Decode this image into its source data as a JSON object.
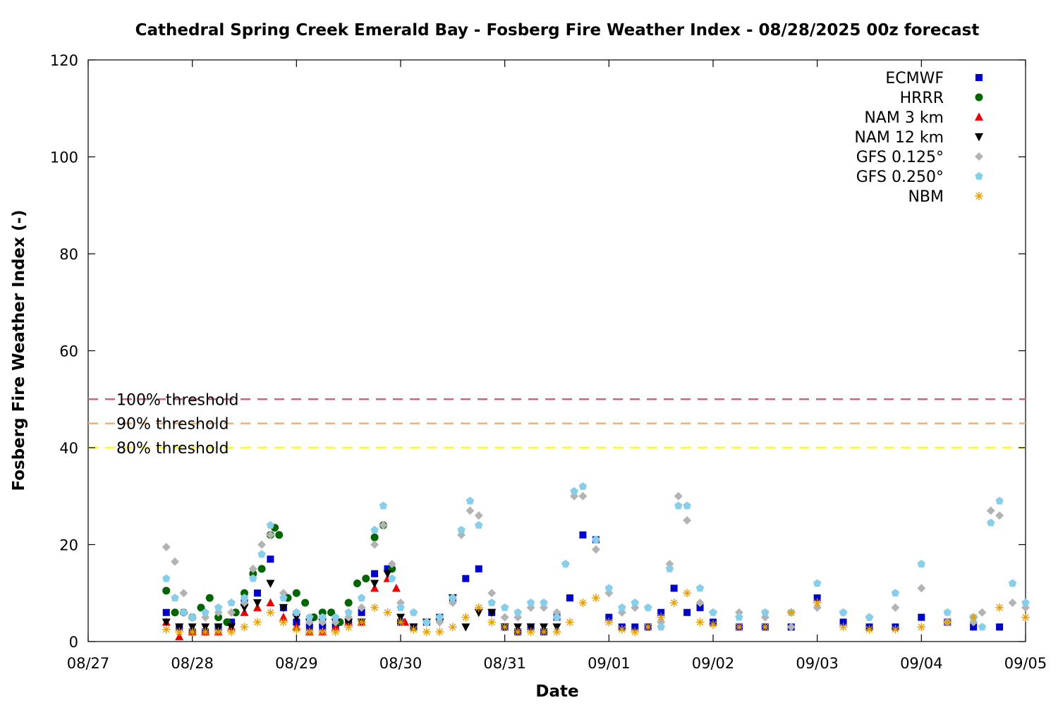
{
  "chart_data": {
    "type": "scatter",
    "title": "Cathedral Spring Creek Emerald Bay - Fosberg Fire Weather Index - 08/28/2025 00z forecast",
    "xlabel": "Date",
    "ylabel": "Fosberg Fire Weather Index (-)",
    "xlim": [
      "08/27",
      "09/05"
    ],
    "ylim": [
      0,
      120
    ],
    "x_tick_labels": [
      "08/27",
      "08/28",
      "08/29",
      "08/30",
      "08/31",
      "09/01",
      "09/02",
      "09/03",
      "09/04",
      "09/05"
    ],
    "y_ticks": [
      0,
      20,
      40,
      60,
      80,
      100,
      120
    ],
    "grid": false,
    "legend_position": "top-right",
    "thresholds": [
      {
        "label": "100% threshold",
        "value": 50,
        "color": "#d95f7f"
      },
      {
        "label": "90% threshold",
        "value": 45,
        "color": "#f0b070"
      },
      {
        "label": "80% threshold",
        "value": 40,
        "color": "#ffff00"
      }
    ],
    "series": [
      {
        "name": "ECMWF",
        "marker": "square",
        "color": "#0000cc",
        "x": [
          "08/27 18:00",
          "08/27 21:00",
          "08/28 00:00",
          "08/28 03:00",
          "08/28 06:00",
          "08/28 09:00",
          "08/28 12:00",
          "08/28 15:00",
          "08/28 18:00",
          "08/28 21:00",
          "08/29 00:00",
          "08/29 03:00",
          "08/29 06:00",
          "08/29 09:00",
          "08/29 12:00",
          "08/29 15:00",
          "08/29 18:00",
          "08/29 21:00",
          "08/30 00:00",
          "08/30 03:00",
          "08/30 06:00",
          "08/30 09:00",
          "08/30 12:00",
          "08/30 15:00",
          "08/30 18:00",
          "08/30 21:00",
          "08/31 00:00",
          "08/31 03:00",
          "08/31 06:00",
          "08/31 09:00",
          "08/31 12:00",
          "08/31 15:00",
          "08/31 18:00",
          "08/31 21:00",
          "09/01 00:00",
          "09/01 03:00",
          "09/01 06:00",
          "09/01 09:00",
          "09/01 12:00",
          "09/01 15:00",
          "09/01 18:00",
          "09/01 21:00",
          "09/02 00:00",
          "09/02 06:00",
          "09/02 12:00",
          "09/02 18:00",
          "09/03 00:00",
          "09/03 06:00",
          "09/03 12:00",
          "09/03 18:00",
          "09/04 00:00",
          "09/04 06:00",
          "09/04 12:00",
          "09/04 18:00"
        ],
        "y": [
          6,
          3,
          2,
          2,
          3,
          4,
          8,
          10,
          17,
          7,
          4,
          3,
          3,
          3,
          4,
          6,
          14,
          15,
          4,
          3,
          4,
          5,
          9,
          13,
          15,
          6,
          3,
          2,
          3,
          2,
          5,
          9,
          22,
          21,
          5,
          3,
          3,
          3,
          6,
          11,
          6,
          7,
          4,
          3,
          3,
          3,
          9,
          4,
          3,
          3,
          5,
          4,
          3,
          3
        ]
      },
      {
        "name": "HRRR",
        "marker": "circle",
        "color": "#006400",
        "x": [
          "08/27 18:00",
          "08/27 20:00",
          "08/27 22:00",
          "08/28 00:00",
          "08/28 02:00",
          "08/28 04:00",
          "08/28 06:00",
          "08/28 08:00",
          "08/28 10:00",
          "08/28 12:00",
          "08/28 14:00",
          "08/28 16:00",
          "08/28 18:00",
          "08/28 19:00",
          "08/28 20:00",
          "08/28 22:00",
          "08/29 00:00",
          "08/29 02:00",
          "08/29 04:00",
          "08/29 06:00",
          "08/29 08:00",
          "08/29 10:00",
          "08/29 12:00",
          "08/29 14:00",
          "08/29 16:00",
          "08/29 18:00",
          "08/29 20:00",
          "08/29 22:00"
        ],
        "y": [
          10.5,
          6,
          6,
          5,
          7,
          9,
          5,
          4,
          6,
          10,
          14,
          15,
          22,
          23.5,
          22,
          9,
          10,
          8,
          5,
          6,
          6,
          4,
          8,
          12,
          13,
          21.5,
          24,
          15
        ]
      },
      {
        "name": "NAM 3 km",
        "marker": "triangle-up",
        "color": "#ee0000",
        "x": [
          "08/27 18:00",
          "08/27 21:00",
          "08/28 00:00",
          "08/28 03:00",
          "08/28 06:00",
          "08/28 09:00",
          "08/28 12:00",
          "08/28 15:00",
          "08/28 18:00",
          "08/28 21:00",
          "08/29 00:00",
          "08/29 03:00",
          "08/29 06:00",
          "08/29 09:00",
          "08/29 12:00",
          "08/29 15:00",
          "08/29 18:00",
          "08/29 21:00",
          "08/29 23:00",
          "08/30 01:00"
        ],
        "y": [
          4,
          1,
          2,
          2,
          2,
          3,
          6,
          7,
          8,
          5,
          3,
          2,
          2,
          3,
          4,
          4,
          11,
          13,
          11,
          4
        ]
      },
      {
        "name": "NAM 12 km",
        "marker": "triangle-down",
        "color": "#000000",
        "x": [
          "08/27 18:00",
          "08/27 21:00",
          "08/28 00:00",
          "08/28 03:00",
          "08/28 06:00",
          "08/28 09:00",
          "08/28 12:00",
          "08/28 15:00",
          "08/28 18:00",
          "08/28 21:00",
          "08/29 00:00",
          "08/29 03:00",
          "08/29 06:00",
          "08/29 09:00",
          "08/29 12:00",
          "08/29 15:00",
          "08/29 18:00",
          "08/29 21:00",
          "08/30 00:00",
          "08/30 03:00",
          "08/30 06:00",
          "08/30 09:00",
          "08/30 12:00",
          "08/30 15:00",
          "08/30 18:00",
          "08/30 21:00",
          "08/31 00:00",
          "08/31 03:00",
          "08/31 06:00",
          "08/31 09:00",
          "08/31 12:00"
        ],
        "y": [
          4,
          3,
          3,
          3,
          3,
          3,
          7,
          8,
          12,
          7,
          5,
          4,
          4,
          4,
          4,
          4,
          12,
          14,
          5,
          3,
          4,
          4,
          9,
          3,
          6,
          6,
          3,
          3,
          3,
          3,
          3
        ]
      },
      {
        "name": "GFS 0.125°",
        "marker": "diamond",
        "color": "#b3b3b3",
        "x": [
          "08/27 18:00",
          "08/27 20:00",
          "08/27 22:00",
          "08/28 00:00",
          "08/28 03:00",
          "08/28 06:00",
          "08/28 09:00",
          "08/28 12:00",
          "08/28 14:00",
          "08/28 16:00",
          "08/28 18:00",
          "08/28 21:00",
          "08/29 00:00",
          "08/29 03:00",
          "08/29 06:00",
          "08/29 09:00",
          "08/29 12:00",
          "08/29 15:00",
          "08/29 18:00",
          "08/29 20:00",
          "08/29 22:00",
          "08/30 00:00",
          "08/30 03:00",
          "08/30 06:00",
          "08/30 09:00",
          "08/30 12:00",
          "08/30 14:00",
          "08/30 16:00",
          "08/30 18:00",
          "08/30 21:00",
          "08/31 00:00",
          "08/31 03:00",
          "08/31 06:00",
          "08/31 09:00",
          "08/31 12:00",
          "08/31 14:00",
          "08/31 16:00",
          "08/31 18:00",
          "08/31 21:00",
          "09/01 00:00",
          "09/01 03:00",
          "09/01 06:00",
          "09/01 09:00",
          "09/01 12:00",
          "09/01 14:00",
          "09/01 16:00",
          "09/01 18:00",
          "09/01 21:00",
          "09/02 00:00",
          "09/02 06:00",
          "09/02 12:00",
          "09/02 18:00",
          "09/03 00:00",
          "09/03 06:00",
          "09/03 12:00",
          "09/03 18:00",
          "09/04 00:00",
          "09/04 06:00",
          "09/04 12:00",
          "09/04 14:00",
          "09/04 16:00",
          "09/04 18:00",
          "09/04 21:00",
          "09/05 00:00"
        ],
        "y": [
          19.5,
          16.5,
          10,
          5,
          5,
          6,
          6,
          8,
          15,
          20,
          22,
          10,
          6,
          4,
          4,
          4,
          5,
          7,
          20,
          24,
          16,
          8,
          6,
          4,
          4,
          8,
          22,
          27,
          26,
          10,
          5,
          5,
          7,
          7,
          6,
          16,
          30,
          30,
          19,
          10,
          6,
          7,
          7,
          4,
          16,
          30,
          25,
          8,
          6,
          6,
          5,
          3,
          7,
          6,
          5,
          7,
          11,
          4,
          4,
          6,
          27,
          26,
          8,
          7
        ]
      },
      {
        "name": "GFS 0.250°",
        "marker": "pentagon",
        "color": "#87ceeb",
        "x": [
          "08/27 18:00",
          "08/27 20:00",
          "08/27 22:00",
          "08/28 00:00",
          "08/28 03:00",
          "08/28 06:00",
          "08/28 09:00",
          "08/28 12:00",
          "08/28 14:00",
          "08/28 16:00",
          "08/28 18:00",
          "08/28 21:00",
          "08/29 00:00",
          "08/29 03:00",
          "08/29 06:00",
          "08/29 09:00",
          "08/29 12:00",
          "08/29 15:00",
          "08/29 18:00",
          "08/29 20:00",
          "08/29 22:00",
          "08/30 00:00",
          "08/30 03:00",
          "08/30 06:00",
          "08/30 09:00",
          "08/30 12:00",
          "08/30 14:00",
          "08/30 16:00",
          "08/30 18:00",
          "08/30 21:00",
          "08/31 00:00",
          "08/31 03:00",
          "08/31 06:00",
          "08/31 09:00",
          "08/31 12:00",
          "08/31 14:00",
          "08/31 16:00",
          "08/31 18:00",
          "08/31 21:00",
          "09/01 00:00",
          "09/01 03:00",
          "09/01 06:00",
          "09/01 09:00",
          "09/01 12:00",
          "09/01 14:00",
          "09/01 16:00",
          "09/01 18:00",
          "09/01 21:00",
          "09/02 00:00",
          "09/02 06:00",
          "09/02 12:00",
          "09/02 18:00",
          "09/03 00:00",
          "09/03 06:00",
          "09/03 12:00",
          "09/03 18:00",
          "09/04 00:00",
          "09/04 06:00",
          "09/04 12:00",
          "09/04 14:00",
          "09/04 16:00",
          "09/04 18:00",
          "09/04 21:00",
          "09/05 00:00"
        ],
        "y": [
          13,
          9,
          6,
          5,
          6,
          7,
          8,
          9,
          13,
          18,
          24,
          9,
          6,
          5,
          5,
          5,
          6,
          9,
          23,
          28,
          13,
          7,
          6,
          4,
          5,
          9,
          23,
          29,
          24,
          8,
          7,
          6,
          8,
          8,
          5,
          16,
          31,
          32,
          21,
          11,
          7,
          8,
          7,
          3,
          15,
          28,
          28,
          11,
          6,
          5,
          6,
          6,
          12,
          6,
          5,
          10,
          16,
          6,
          5,
          3,
          24.5,
          29,
          12,
          8
        ]
      },
      {
        "name": "NBM",
        "marker": "star",
        "color": "#e69f00",
        "x": [
          "08/27 18:00",
          "08/27 21:00",
          "08/28 00:00",
          "08/28 03:00",
          "08/28 06:00",
          "08/28 09:00",
          "08/28 12:00",
          "08/28 15:00",
          "08/28 18:00",
          "08/28 21:00",
          "08/29 00:00",
          "08/29 03:00",
          "08/29 06:00",
          "08/29 09:00",
          "08/29 12:00",
          "08/29 15:00",
          "08/29 18:00",
          "08/29 21:00",
          "08/30 00:00",
          "08/30 03:00",
          "08/30 06:00",
          "08/30 09:00",
          "08/30 12:00",
          "08/30 15:00",
          "08/30 18:00",
          "08/30 21:00",
          "08/31 00:00",
          "08/31 03:00",
          "08/31 06:00",
          "08/31 09:00",
          "08/31 12:00",
          "08/31 15:00",
          "08/31 18:00",
          "08/31 21:00",
          "09/01 00:00",
          "09/01 03:00",
          "09/01 06:00",
          "09/01 09:00",
          "09/01 12:00",
          "09/01 15:00",
          "09/01 18:00",
          "09/01 21:00",
          "09/02 00:00",
          "09/02 06:00",
          "09/02 12:00",
          "09/02 18:00",
          "09/03 00:00",
          "09/03 06:00",
          "09/03 12:00",
          "09/03 18:00",
          "09/04 00:00",
          "09/04 06:00",
          "09/04 12:00",
          "09/04 18:00",
          "09/05 00:00"
        ],
        "y": [
          2.5,
          2,
          2,
          2,
          2,
          2,
          3,
          4,
          6,
          4,
          2.5,
          2,
          2,
          2,
          3,
          4,
          7,
          6,
          4,
          2.5,
          2,
          2,
          3,
          5,
          7,
          4,
          3,
          2,
          2,
          2,
          2,
          4,
          8,
          9,
          4,
          2.5,
          2,
          3,
          5,
          8,
          10,
          4,
          3.5,
          3,
          3,
          6,
          8,
          3,
          2.5,
          2.5,
          3,
          4,
          5,
          7,
          5
        ]
      }
    ]
  }
}
